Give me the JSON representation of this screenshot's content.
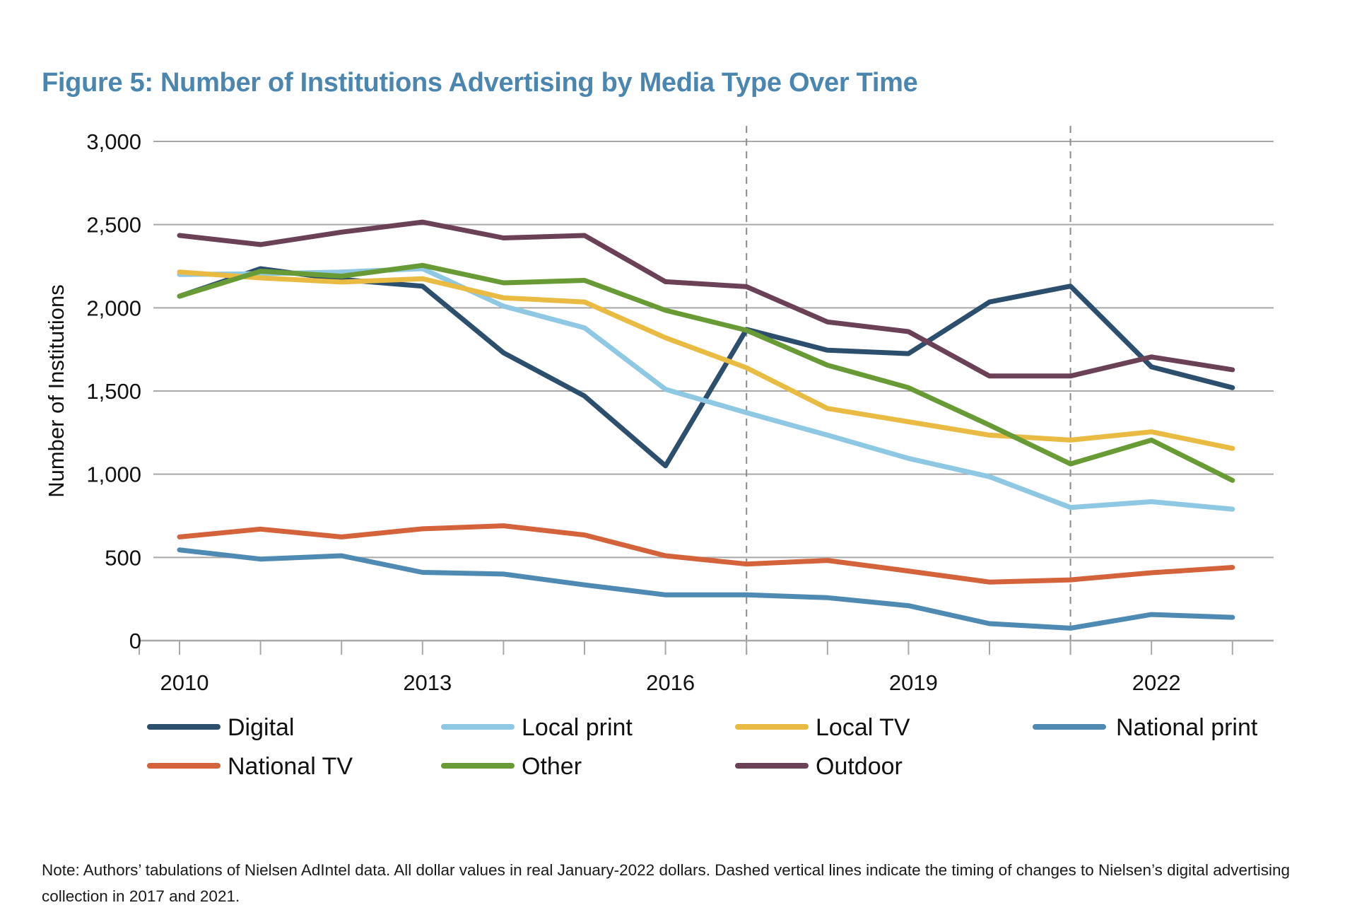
{
  "title": "Figure 5: Number of Institutions Advertising by Media Type Over Time",
  "note": "Note: Authors’ tabulations of Nielsen AdIntel data. All dollar values in real January-2022 dollars. Dashed vertical lines indicate the timing of changes to Nielsen’s digital advertising collection in 2017 and 2021.",
  "chart_data": {
    "type": "line",
    "title": "Figure 5: Number of Institutions Advertising by Media Type Over Time",
    "xlabel": "",
    "ylabel": "Number of Institutions",
    "x": [
      2010,
      2011,
      2012,
      2013,
      2014,
      2015,
      2016,
      2017,
      2018,
      2019,
      2020,
      2021,
      2022,
      2023
    ],
    "x_tick_labels": [
      "2010",
      "2013",
      "2016",
      "2019",
      "2022"
    ],
    "x_tick_label_years": [
      2010,
      2013,
      2016,
      2019,
      2022
    ],
    "y_tick_labels": [
      "0",
      "500",
      "1,000",
      "1,500",
      "2,000",
      "2,500",
      "3,000"
    ],
    "y_ticks": [
      0,
      500,
      1000,
      1500,
      2000,
      2500,
      3000
    ],
    "ylim": [
      0,
      3000
    ],
    "grid": "horizontal",
    "reference_lines": [
      {
        "x": 2017,
        "style": "dashed",
        "meaning": "change to Nielsen digital advertising collection"
      },
      {
        "x": 2021,
        "style": "dashed",
        "meaning": "change to Nielsen digital advertising collection"
      }
    ],
    "legend_position": "bottom",
    "series": [
      {
        "name": "Digital",
        "color": "#2c4f6e",
        "values": [
          2070,
          2235,
          2170,
          2130,
          1730,
          1470,
          1050,
          1870,
          1745,
          1725,
          2035,
          2130,
          1645,
          1520
        ]
      },
      {
        "name": "Local print",
        "color": "#8ec8e2",
        "values": [
          2200,
          2205,
          2215,
          2235,
          2010,
          1880,
          1510,
          1370,
          1235,
          1095,
          985,
          800,
          835,
          790
        ]
      },
      {
        "name": "Local TV",
        "color": "#e9bb43",
        "values": [
          2215,
          2180,
          2155,
          2175,
          2060,
          2035,
          1820,
          1640,
          1395,
          1315,
          1235,
          1205,
          1255,
          1155
        ]
      },
      {
        "name": "National print",
        "color": "#4f8ab3",
        "values": [
          545,
          490,
          510,
          410,
          400,
          335,
          275,
          275,
          258,
          210,
          102,
          75,
          157,
          140
        ]
      },
      {
        "name": "National TV",
        "color": "#d4623a",
        "values": [
          623,
          670,
          623,
          672,
          690,
          635,
          510,
          460,
          482,
          418,
          352,
          365,
          408,
          440
        ]
      },
      {
        "name": "Other",
        "color": "#689b35",
        "values": [
          2070,
          2220,
          2190,
          2255,
          2150,
          2165,
          1985,
          1865,
          1655,
          1520,
          1295,
          1062,
          1205,
          963
        ]
      },
      {
        "name": "Outdoor",
        "color": "#6a4157",
        "values": [
          2435,
          2380,
          2455,
          2515,
          2420,
          2435,
          2157,
          2127,
          1915,
          1857,
          1590,
          1590,
          1705,
          1628
        ]
      }
    ]
  },
  "colors": {
    "title": "#4a86b0",
    "grid": "#a8a8a8",
    "reference_line": "#8c8c8c"
  }
}
